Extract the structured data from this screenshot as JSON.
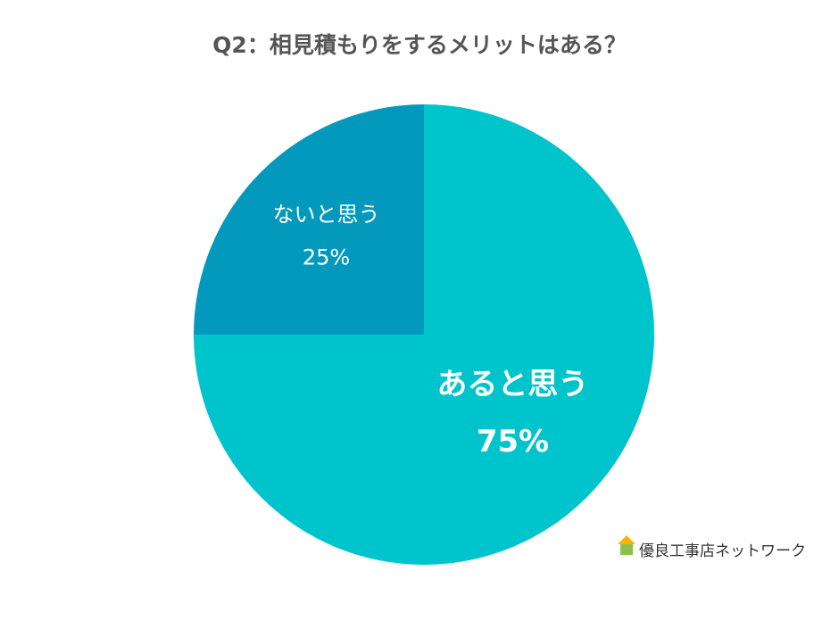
{
  "chart_data": {
    "type": "pie",
    "title": "Q2：相見積もりをするメリットはある？",
    "categories": [
      "あると思う",
      "ないと思う"
    ],
    "values": [
      75,
      25
    ],
    "value_labels": [
      "75%",
      "25%"
    ],
    "colors": [
      "#00c4cc",
      "#0399bc"
    ],
    "watermark": "優良工事店ネットワーク"
  }
}
